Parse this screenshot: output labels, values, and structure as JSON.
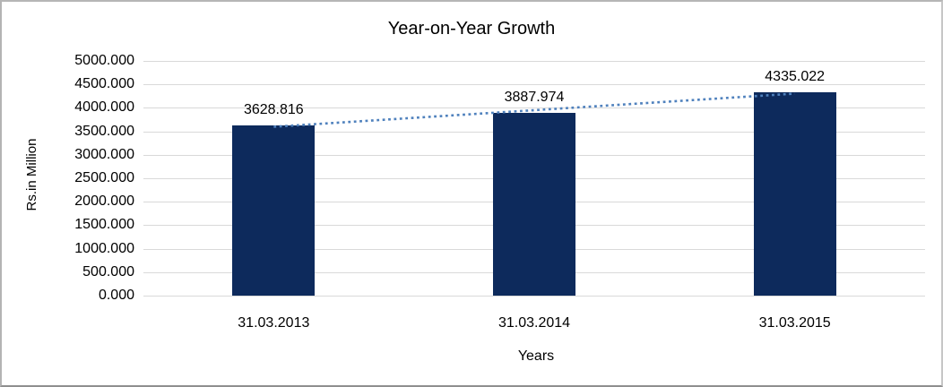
{
  "chart_data": {
    "type": "bar",
    "title": "Year-on-Year Growth",
    "categories": [
      "31.03.2013",
      "31.03.2014",
      "31.03.2015"
    ],
    "values": [
      3628.816,
      3887.974,
      4335.022
    ],
    "data_labels": [
      "3628.816",
      "3887.974",
      "4335.022"
    ],
    "xlabel": "Years",
    "ylabel": "Rs.in Million",
    "ylim": [
      0,
      5000
    ],
    "ytick_step": 500,
    "ytick_labels": [
      "0.000",
      "500.000",
      "1000.000",
      "1500.000",
      "2000.000",
      "2500.000",
      "3000.000",
      "3500.000",
      "4000.000",
      "4500.000",
      "5000.000"
    ],
    "grid": true,
    "legend": "none",
    "bar_color": "#0d2a5c",
    "gridline_color": "#d9d9d9",
    "text_color": "#000000",
    "trendline": {
      "kind": "linear",
      "style": "dotted",
      "color": "#4f81bd"
    }
  }
}
